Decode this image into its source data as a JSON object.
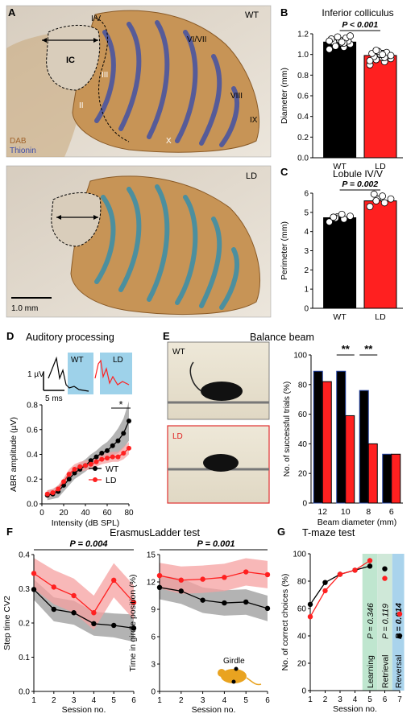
{
  "colors": {
    "wt": "#000000",
    "ld": "#ff2020",
    "ld_band": "#f5a0a0",
    "wt_band": "#9a9a9a",
    "abr_box": "#9ed2ea",
    "learning": "#bfe6cf",
    "retrieval": "#cfe8d8",
    "reversal": "#a9d3ec",
    "dab_label": "#a0622a",
    "thionin_label": "#3a4aa8"
  },
  "panel_letters": {
    "A": "A",
    "B": "B",
    "C": "C",
    "D": "D",
    "E": "E",
    "F": "F",
    "G": "G"
  },
  "histology": {
    "wt_label": "WT",
    "ld_label": "LD",
    "ic_label": "IC",
    "lobules": {
      "l1": "I/V",
      "l2": "VI/VII",
      "l3": "VIII",
      "l4": "IX",
      "l5": "X",
      "l6": "II",
      "l7": "III"
    },
    "stain_dab": "DAB",
    "stain_thionin": "Thionin",
    "scale_bar": "1.0 mm"
  },
  "balance_photos": {
    "wt_label": "WT",
    "ld_label": "LD"
  },
  "girdle_label": "Girdle",
  "chart_data": [
    {
      "id": "B",
      "type": "bar",
      "title": "Inferior colliculus",
      "ylabel": "Diameter (mm)",
      "ylim": [
        0,
        1.2
      ],
      "yticks": [
        "0.0",
        "0.2",
        "0.4",
        "0.6",
        "0.8",
        "1.0",
        "1.2"
      ],
      "categories": [
        "WT",
        "LD"
      ],
      "values": [
        1.12,
        0.99
      ],
      "errors": [
        0.04,
        0.05
      ],
      "points": [
        [
          1.05,
          1.07,
          1.09,
          1.1,
          1.11,
          1.12,
          1.13,
          1.14,
          1.15,
          1.16,
          1.17,
          1.13,
          1.11,
          1.08,
          1.18,
          1.12
        ],
        [
          0.9,
          0.93,
          0.95,
          0.96,
          0.97,
          0.98,
          0.99,
          1.0,
          1.01,
          1.02,
          1.03,
          0.94,
          0.97,
          1.04,
          0.99,
          1.0
        ]
      ],
      "stat": "P < 0.001"
    },
    {
      "id": "C",
      "type": "bar",
      "title": "Lobule IV/V",
      "ylabel": "Perimeter (mm)",
      "ylim": [
        0,
        6
      ],
      "yticks": [
        "0",
        "1",
        "2",
        "3",
        "4",
        "5",
        "6"
      ],
      "categories": [
        "WT",
        "LD"
      ],
      "values": [
        4.72,
        5.6
      ],
      "errors": [
        0.2,
        0.25
      ],
      "points": [
        [
          4.5,
          4.65,
          4.7,
          4.8,
          4.9,
          4.75
        ],
        [
          5.3,
          5.5,
          5.6,
          5.7,
          5.85,
          5.95
        ]
      ],
      "stat": "P = 0.002"
    },
    {
      "id": "D",
      "type": "line",
      "title": "Auditory processing",
      "xlabel": "Intensity (dB SPL)",
      "ylabel": "ABR amplitude (µV)",
      "xlim": [
        0,
        80
      ],
      "ylim": [
        0,
        0.8
      ],
      "xticks": [
        "0",
        "20",
        "40",
        "60",
        "80"
      ],
      "yticks": [
        "0.0",
        "0.2",
        "0.4",
        "0.6",
        "0.8"
      ],
      "x": [
        5,
        10,
        15,
        20,
        25,
        30,
        35,
        40,
        45,
        50,
        55,
        60,
        65,
        70,
        75,
        80
      ],
      "series": [
        {
          "name": "WT",
          "values": [
            0.07,
            0.08,
            0.1,
            0.15,
            0.2,
            0.25,
            0.28,
            0.31,
            0.35,
            0.38,
            0.41,
            0.43,
            0.47,
            0.51,
            0.57,
            0.67
          ]
        },
        {
          "name": "LD",
          "values": [
            0.08,
            0.09,
            0.12,
            0.18,
            0.24,
            0.28,
            0.3,
            0.31,
            0.32,
            0.34,
            0.36,
            0.37,
            0.38,
            0.38,
            0.41,
            0.45
          ]
        }
      ],
      "band_wt": [
        0.04,
        0.04,
        0.05,
        0.05,
        0.05,
        0.05,
        0.05,
        0.05,
        0.05,
        0.05,
        0.06,
        0.07,
        0.08,
        0.1,
        0.12,
        0.16
      ],
      "band_ld": [
        0.03,
        0.03,
        0.03,
        0.03,
        0.04,
        0.04,
        0.04,
        0.04,
        0.04,
        0.04,
        0.04,
        0.04,
        0.04,
        0.04,
        0.05,
        0.05
      ],
      "inset": {
        "y_scale": "1 µV",
        "x_scale": "5 ms",
        "wt_label": "WT",
        "ld_label": "LD"
      },
      "sig": "*"
    },
    {
      "id": "E",
      "type": "bar",
      "title": "Balance beam",
      "xlabel": "Beam diameter (mm)",
      "ylabel": "No. of successful trials (%)",
      "ylim": [
        0,
        100
      ],
      "yticks": [
        "0",
        "20",
        "40",
        "60",
        "80",
        "100"
      ],
      "categories": [
        "12",
        "10",
        "8",
        "6"
      ],
      "series": [
        {
          "name": "WT",
          "values": [
            89,
            89,
            76,
            33
          ]
        },
        {
          "name": "LD",
          "values": [
            82,
            59,
            40,
            33
          ]
        }
      ],
      "sig": [
        "",
        "**",
        "**",
        ""
      ]
    },
    {
      "id": "F1",
      "type": "line",
      "title": "ErasmusLadder test",
      "xlabel": "Session no.",
      "ylabel": "Step time CV2",
      "xlim": [
        1,
        6
      ],
      "ylim": [
        0,
        0.4
      ],
      "xticks": [
        "1",
        "2",
        "3",
        "4",
        "5",
        "6"
      ],
      "yticks": [
        "0.0",
        "0.1",
        "0.2",
        "0.3",
        "0.4"
      ],
      "x": [
        1,
        2,
        3,
        4,
        5,
        6
      ],
      "series": [
        {
          "name": "WT",
          "values": [
            0.298,
            0.24,
            0.23,
            0.198,
            0.193,
            0.185
          ]
        },
        {
          "name": "LD",
          "values": [
            0.345,
            0.305,
            0.28,
            0.23,
            0.325,
            0.26
          ]
        }
      ],
      "band_wt": [
        0.03,
        0.035,
        0.035,
        0.035,
        0.035,
        0.04
      ],
      "band_ld": [
        0.045,
        0.05,
        0.05,
        0.05,
        0.05,
        0.05
      ],
      "stat": "P = 0.004"
    },
    {
      "id": "F2",
      "type": "line",
      "xlabel": "Session no.",
      "ylabel": "Time in girdle position (%)",
      "xlim": [
        1,
        6
      ],
      "ylim": [
        0,
        15
      ],
      "xticks": [
        "1",
        "2",
        "3",
        "4",
        "5",
        "6"
      ],
      "yticks": [
        "0",
        "3",
        "6",
        "9",
        "12",
        "15"
      ],
      "x": [
        1,
        2,
        3,
        4,
        5,
        6
      ],
      "series": [
        {
          "name": "WT",
          "values": [
            11.4,
            11.0,
            10.0,
            9.7,
            9.8,
            9.1
          ]
        },
        {
          "name": "LD",
          "values": [
            12.7,
            12.2,
            12.3,
            12.5,
            13.1,
            12.8
          ]
        }
      ],
      "band_wt": [
        1.3,
        1.4,
        1.4,
        1.4,
        1.4,
        1.4
      ],
      "band_ld": [
        1.4,
        1.5,
        1.5,
        1.5,
        1.5,
        1.5
      ],
      "stat": "P = 0.001"
    },
    {
      "id": "G",
      "type": "line",
      "title": "T-maze test",
      "xlabel": "Session no.",
      "ylabel": "No. of correct choices (%)",
      "xlim": [
        1,
        7
      ],
      "ylim": [
        0,
        100
      ],
      "xticks": [
        "1",
        "2",
        "3",
        "4",
        "5",
        "6",
        "7"
      ],
      "yticks": [
        "0",
        "20",
        "40",
        "60",
        "80",
        "100"
      ],
      "series": [
        {
          "name": "WT",
          "x": [
            1,
            2,
            3,
            4,
            5
          ],
          "values": [
            63,
            79,
            85,
            88,
            91
          ]
        },
        {
          "name": "LD",
          "x": [
            1,
            2,
            3,
            4,
            5
          ],
          "values": [
            54,
            73,
            85,
            88,
            95
          ]
        }
      ],
      "points": [
        {
          "name": "WT",
          "x": [
            6,
            7
          ],
          "values": [
            89,
            40
          ]
        },
        {
          "name": "LD",
          "x": [
            6,
            7
          ],
          "values": [
            82,
            56
          ]
        }
      ],
      "phases": [
        "Learning",
        "Retrieval",
        "Reversal"
      ],
      "phase_stats": [
        "P = 0.346",
        "P = 0.119",
        "P = 0.014"
      ]
    }
  ]
}
